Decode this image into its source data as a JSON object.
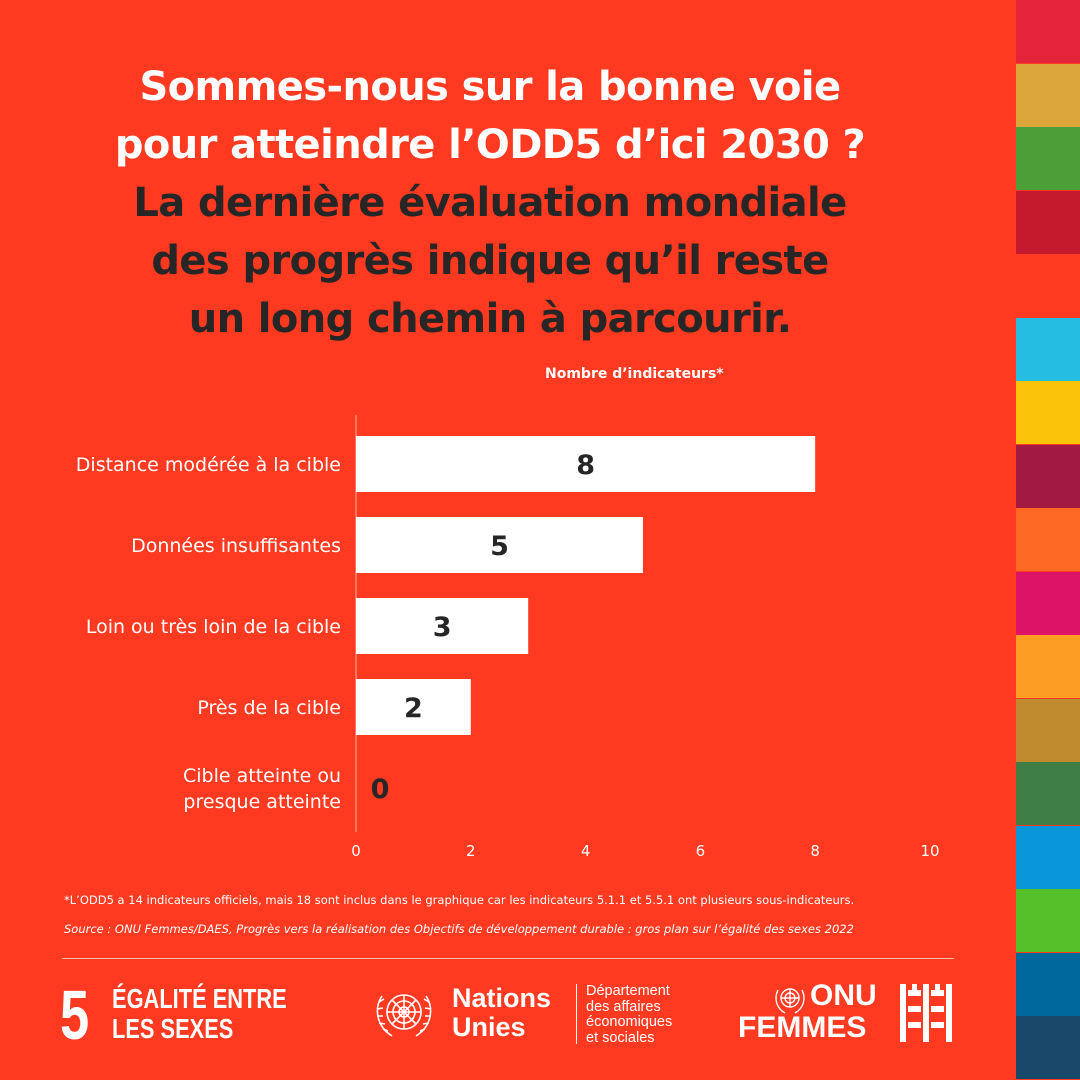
{
  "headline": {
    "line1a": "Sommes-nous sur la bonne voie",
    "line1b": "pour atteindre l’ODD5 d’ici 2030 ?",
    "line2a": "La dernière évaluation mondiale",
    "line2b": "des progrès indique qu’il reste",
    "line2c": "un long chemin à parcourir."
  },
  "chart_subtitle": "Nombre d’indicateurs*",
  "chart_data": {
    "type": "bar",
    "orientation": "horizontal",
    "categories": [
      [
        "Distance modérée à la cible"
      ],
      [
        "Données insuffisantes"
      ],
      [
        "Loin ou très loin de la cible"
      ],
      [
        "Près de la cible"
      ],
      [
        "Cible atteinte ou",
        "presque atteinte"
      ]
    ],
    "values": [
      8,
      5,
      3,
      2,
      0
    ],
    "xlim": [
      0,
      10
    ],
    "xticks": [
      0,
      2,
      4,
      6,
      8,
      10
    ],
    "bar_color": "#FFFFFF",
    "label_color": "#262626"
  },
  "footnote": "*L’ODD5 a 14 indicateurs officiels, mais 18 sont inclus dans le graphique car les indicateurs 5.1.1 et 5.5.1 ont plusieurs sous-indicateurs.",
  "source": "Source : ONU Femmes/DAES, Progrès vers la réalisation des Objectifs de développement durable : gros plan sur l’égalité des sexes 2022",
  "footer": {
    "goal_number": "5",
    "goal_line1": "ÉGALITÉ ENTRE",
    "goal_line2": "LES SEXES",
    "un_line1": "Nations",
    "un_line2": "Unies",
    "desa_lines": [
      "Département",
      "des affaires",
      "économiques",
      "et sociales"
    ],
    "unw_line1": "ONU",
    "unw_line2": "FEMMES"
  },
  "colors": {
    "background": "#FF3A21",
    "dark_text": "#262626",
    "sdg_stripes": [
      "#E5243B",
      "#DDA63A",
      "#4C9F38",
      "#C5192D",
      "#FF3A21",
      "#26BDE2",
      "#FCC30B",
      "#A21942",
      "#FD6925",
      "#DD1367",
      "#FD9D24",
      "#BF8B2E",
      "#3F7E44",
      "#0A97D9",
      "#56C02B",
      "#00689D",
      "#19486A"
    ]
  }
}
